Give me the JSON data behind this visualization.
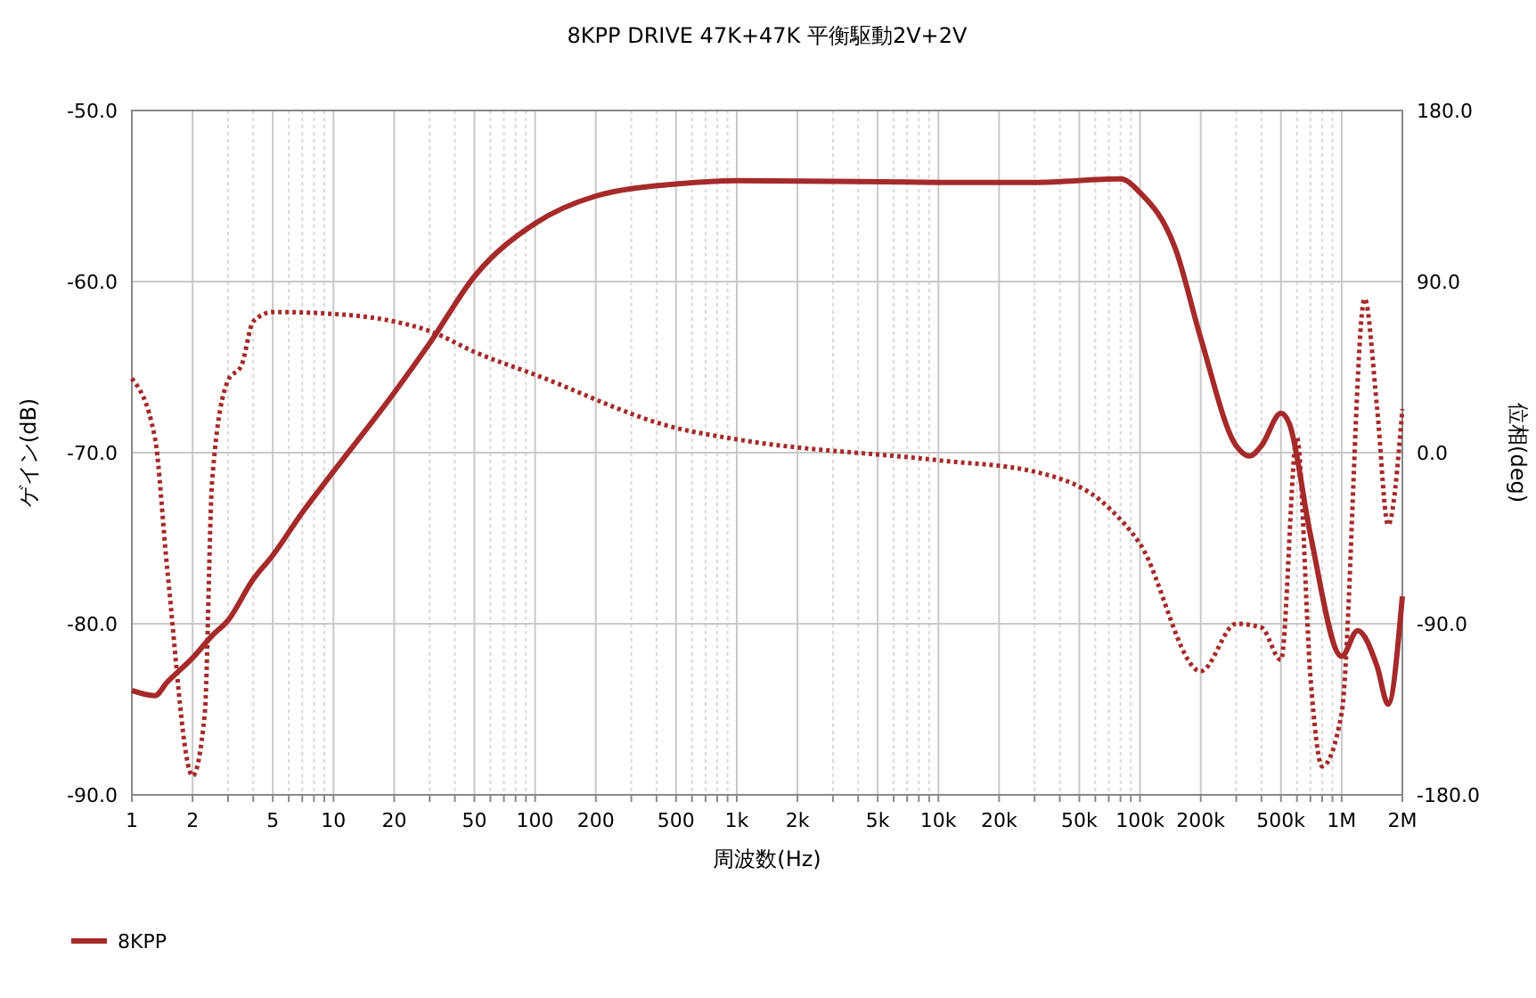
{
  "chart_data": {
    "type": "line",
    "title": "8KPP DRIVE 47K+47K 平衡駆動2V+2V",
    "xlabel": "周波数(Hz)",
    "ylabel": "ゲイン(dB)",
    "y2label": "位相(deg)",
    "log": "x",
    "grid": true,
    "legend": "bottom",
    "xlim": [
      1,
      2000000
    ],
    "xticks": [
      1,
      2,
      {
        "value": 3,
        "label": null
      },
      {
        "value": 4,
        "label": null
      },
      5,
      {
        "value": 6,
        "label": null
      },
      {
        "value": 7,
        "label": null
      },
      {
        "value": 8,
        "label": null
      },
      {
        "value": 9,
        "label": null
      },
      10,
      20,
      {
        "value": 30,
        "label": null
      },
      {
        "value": 40,
        "label": null
      },
      50,
      {
        "value": 60,
        "label": null
      },
      {
        "value": 70,
        "label": null
      },
      {
        "value": 80,
        "label": null
      },
      {
        "value": 90,
        "label": null
      },
      100,
      200,
      {
        "value": 300,
        "label": null
      },
      {
        "value": 400,
        "label": null
      },
      500,
      {
        "value": 600,
        "label": null
      },
      {
        "value": 700,
        "label": null
      },
      {
        "value": 800,
        "label": null
      },
      {
        "value": 900,
        "label": null
      },
      {
        "value": 1000,
        "label": "1k"
      },
      {
        "value": 2000,
        "label": "2k"
      },
      {
        "value": 3000,
        "label": null
      },
      {
        "value": 4000,
        "label": null
      },
      {
        "value": 5000,
        "label": "5k"
      },
      {
        "value": 6000,
        "label": null
      },
      {
        "value": 7000,
        "label": null
      },
      {
        "value": 8000,
        "label": null
      },
      {
        "value": 9000,
        "label": null
      },
      {
        "value": 10000,
        "label": "10k"
      },
      {
        "value": 20000,
        "label": "20k"
      },
      {
        "value": 30000,
        "label": null
      },
      {
        "value": 40000,
        "label": null
      },
      {
        "value": 50000,
        "label": "50k"
      },
      {
        "value": 60000,
        "label": null
      },
      {
        "value": 70000,
        "label": null
      },
      {
        "value": 80000,
        "label": null
      },
      {
        "value": 90000,
        "label": null
      },
      {
        "value": 100000,
        "label": "100k"
      },
      {
        "value": 200000,
        "label": "200k"
      },
      {
        "value": 300000,
        "label": null
      },
      {
        "value": 400000,
        "label": null
      },
      {
        "value": 500000,
        "label": "500k"
      },
      {
        "value": 600000,
        "label": null
      },
      {
        "value": 700000,
        "label": null
      },
      {
        "value": 800000,
        "label": null
      },
      {
        "value": 900000,
        "label": null
      },
      {
        "value": 1000000,
        "label": "1M"
      },
      {
        "value": 2000000,
        "label": "2M"
      }
    ],
    "ylim": [
      -90,
      -50
    ],
    "yticks": [
      {
        "value": -90,
        "label": "-90.0"
      },
      {
        "value": -80,
        "label": "-80.0"
      },
      {
        "value": -70,
        "label": "-70.0"
      },
      {
        "value": -60,
        "label": "-60.0"
      },
      {
        "value": -50,
        "label": "-50.0"
      }
    ],
    "y2lim": [
      -180,
      180
    ],
    "y2ticks": [
      {
        "value": -180,
        "label": "-180.0"
      },
      {
        "value": -90,
        "label": "-90.0"
      },
      {
        "value": 0,
        "label": "0.0"
      },
      {
        "value": 90,
        "label": "90.0"
      },
      {
        "value": 180,
        "label": "180.0"
      }
    ],
    "series": [
      {
        "name": "8KPP",
        "color": "#a52a2a",
        "line_style": "solid",
        "x": [
          1,
          1.3,
          1.5,
          2,
          2.5,
          3,
          4,
          5,
          7,
          10,
          20,
          30,
          50,
          100,
          200,
          500,
          1000,
          10000,
          30000,
          80000,
          100000,
          150000,
          200000,
          300000,
          350000,
          400000,
          500000,
          550000,
          700000,
          1000000,
          1200000,
          1500000,
          1700000,
          2000000
        ],
        "values": [
          -83.9,
          -84.2,
          -83.4,
          -82.0,
          -80.7,
          -79.8,
          -77.4,
          -76.0,
          -73.5,
          -71.1,
          -66.5,
          -63.6,
          -59.7,
          -56.6,
          -55.0,
          -54.3,
          -54.1,
          -54.2,
          -54.2,
          -54.0,
          -54.8,
          -58.1,
          -63.3,
          -69.6,
          -70.2,
          -69.6,
          -67.7,
          -68.3,
          -74.8,
          -81.9,
          -80.4,
          -82.5,
          -84.7,
          -78.4
        ]
      },
      {
        "color": "#a52a2a",
        "line_style": "dotted",
        "axis": "y2",
        "x": [
          1,
          1.3,
          1.5,
          2,
          2.3,
          2.5,
          3,
          3.5,
          4,
          5,
          10,
          20,
          30,
          50,
          100,
          500,
          1000,
          10000,
          30000,
          70000,
          100000,
          200000,
          300000,
          400000,
          500000,
          600000,
          700000,
          800000,
          1000000,
          1300000,
          1500000,
          1700000,
          2000000
        ],
        "values": [
          39,
          8,
          -62,
          -170,
          -137,
          -15,
          38,
          46,
          69,
          74,
          73,
          69,
          64,
          53,
          41,
          13,
          7,
          -4,
          -10,
          -29,
          -48,
          -115,
          -90,
          -92,
          -109,
          8,
          -118,
          -165,
          -137,
          81,
          23,
          -38,
          23
        ]
      }
    ]
  }
}
